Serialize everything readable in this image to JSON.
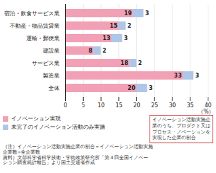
{
  "chart_data": {
    "type": "bar",
    "orientation": "horizontal",
    "stacked": true,
    "data_labels": true,
    "categories": [
      "宿泊・飲食サービス業",
      "不動産・物品賃貸業",
      "運輸・郵便業",
      "建設業",
      "サービス業",
      "製造業",
      "全体"
    ],
    "series": [
      {
        "name": "イノベーション実現",
        "color": "#f2a0b5",
        "values": [
          19,
          15,
          13,
          8,
          18,
          33,
          20
        ]
      },
      {
        "name": "未完了のイノベーション活動のみ実施",
        "color": "#aec6e8",
        "values": [
          3,
          2,
          3,
          2,
          2,
          3,
          3
        ]
      }
    ],
    "xlabel": "（%）",
    "xlim": [
      0,
      40
    ],
    "xticks": [
      0,
      5,
      10,
      15,
      20,
      25,
      30,
      35,
      40
    ],
    "grid": true,
    "legend": "bottom",
    "annotations": [
      "イノベーション活動実施企\n業のうち、プロダクト又は\nプロセス・ノベーションを\n実現した企業の割合",
      "（注）イノベーション活動実施企業の割合＝イノベーション活動実施\n企業数÷全企業数",
      "資料）文部科学省科学技術・学術政策研究所「第４回全国イノベー\nション調査統計報告」より国土交通省作成"
    ]
  }
}
